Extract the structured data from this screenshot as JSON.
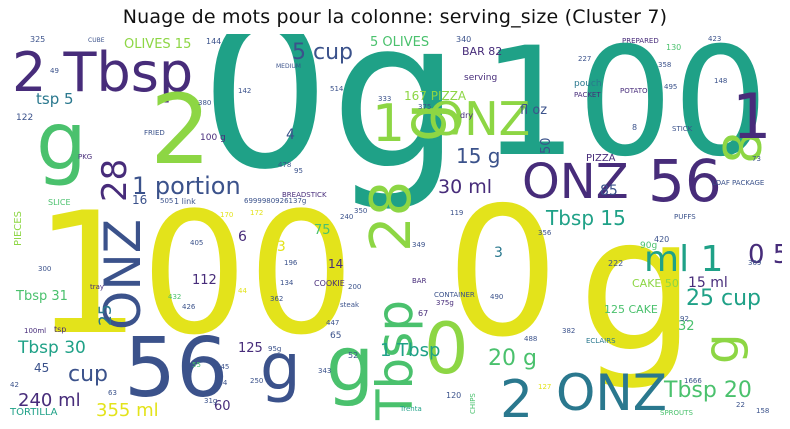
{
  "title": "Nuage de mots pour la colonne: serving_size (Cluster 7)",
  "palette": {
    "yellow": "#e3e31b",
    "lime": "#8dd644",
    "green": "#4ac16d",
    "teal": "#1fa187",
    "teal_dark": "#2a788e",
    "blue": "#3b528b",
    "purple": "#472c7a",
    "violet": "#440154"
  },
  "words": {
    "w0g_center": "0g",
    "w100_tr": "100",
    "w100_bl": "100",
    "w0_bc": "0",
    "wg_br": "g",
    "w2tbsp": "2 Tbsp",
    "w2_big": "2",
    "w56_b": "56",
    "w56_r": "56",
    "wonz_mid": "ONZ",
    "wonz_right": "ONZ",
    "wonz_bot": "ONZ",
    "wonz_vert": "ONZ",
    "wg_left": "g",
    "w28": "28",
    "w1portion": "1 portion",
    "wtbsp_vert": "Tbsp",
    "w28_vert": "28",
    "wg_vert_top": "g",
    "w1_mid": "1",
    "w5cup": "5 cup",
    "w15g": "15 g",
    "w30ml": "30 ml",
    "wtbsp15": "Tbsp 15",
    "wml1": "ml 1",
    "w25cup": "25 cup",
    "w15ml": "15 ml",
    "wtbsp30": "Tbsp 30",
    "wcup_b": "cup",
    "w240ml": "240 ml",
    "w355ml": "355 ml",
    "wtbsp20": "Tbsp 20",
    "w20g": "20 g",
    "w2_bot": "2",
    "w0_mid": "0",
    "wg_mid": "g",
    "wg_botl": "g",
    "w1_tb": "1 Tbsp",
    "wg_r1": "g",
    "w8_r": "8",
    "w1_r": "1",
    "wolives15": "OLIVES 15",
    "w5olives": "5 OLIVES",
    "wtsp5": "tsp 5",
    "w167pizza": "167 PIZZA",
    "wfloz": "fl oz",
    "w85": "85",
    "w33": "33",
    "w75": "75",
    "w112": "112",
    "w125": "125",
    "w45": "45",
    "w60": "60",
    "w6": "6",
    "w4": "4",
    "w3": "3",
    "w32": "32",
    "w14": "14",
    "w38": "38",
    "w125cake": "125 CAKE",
    "wcake50": "CAKE 50",
    "wtbsp31": "Tbsp 31",
    "wbar82": "BAR 82",
    "wpizza_s": "PIZZA",
    "w0_5": "0 5",
    "w50": "50",
    "w25": "25",
    "w0_left": "0",
    "w16": "16",
    "wportion_small": "1 link",
    "wtortilla": "TORTILLA",
    "wpieces": "PIECES",
    "wslice": "SLICE",
    "wpkg": "PKG",
    "wfried": "FRIED",
    "wserving": "serving",
    "wpouch": "pouch",
    "wpacket": "PACKET",
    "wpotato": "POTATO",
    "wprepared": "PREPARED",
    "wstick": "STICK",
    "wloaf": "LOAF",
    "wpackage": "PACKAGE",
    "wpuffs": "PUFFS",
    "wchips": "CHIPS",
    "wcookie": "COOKIE",
    "wcontainer": "CONTAINER",
    "weclairs": "ECLAIRS",
    "wsprouts": "SPROUTS",
    "wbreadstick": "BREADSTICK",
    "wtray": "tray",
    "wsteak": "steak",
    "wdry": "dry",
    "wmedium": "MEDIUM",
    "wcube": "CUBE",
    "wtrenta": "Trenta",
    "wbar": "BAR",
    "wtsp": "tsp",
    "w100ml": "100ml",
    "w90g": "90g",
    "w375g": "375g",
    "w100g_s": "100 g",
    "wlong": "6999980926137g",
    "wn325": "325",
    "wn49": "49",
    "wn122": "122",
    "wn144": "144",
    "wn340": "340",
    "wn227": "227",
    "wn423": "423",
    "wn130": "130",
    "wn358": "358",
    "wn148": "148",
    "wn495": "495",
    "wn73": "73",
    "wn420": "420",
    "wn369": "369",
    "wn222": "222",
    "wn356": "356",
    "wn490": "490",
    "wn382": "382",
    "wn1666": "1666",
    "wn22": "22",
    "wn158": "158",
    "wn67": "67",
    "wn405": "405",
    "wn196": "196",
    "wn134": "134",
    "wn362": "362",
    "wn426": "426",
    "wn432": "432",
    "wn300": "300",
    "wn115": "115",
    "wn545": "545",
    "wn354": "354",
    "wn250": "250",
    "wn343": "343",
    "wn120": "120",
    "wn447": "447",
    "wn65": "65",
    "wn200": "200",
    "wn240": "240",
    "wn350": "350",
    "wn505": "505",
    "wn478": "478",
    "wn95": "95",
    "wn142": "142",
    "wn380": "380",
    "wn514": "514",
    "wn333": "333",
    "wn375": "375",
    "wn8": "8",
    "wn42": "42",
    "wn63": "63",
    "wn31g": "31g",
    "wn95g": "95g",
    "wn52": "52",
    "wn119": "119",
    "wn349": "349",
    "wn170": "170",
    "wn172": "172",
    "wn44": "44",
    "wn55": "55",
    "wn488": "488",
    "wn127": "127",
    "wn92": "92"
  }
}
